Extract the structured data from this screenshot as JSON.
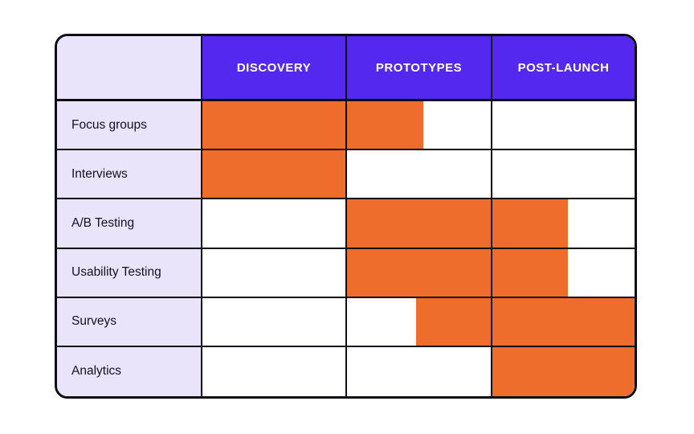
{
  "colors": {
    "header_bg": "#5528F0",
    "header_text": "#FFFFFF",
    "label_bg": "#E9E4F9",
    "bar": "#EE6C2C",
    "grid": "#0E0C15",
    "cell_bg": "#FFFFFF",
    "label_text": "#15101E"
  },
  "table": {
    "corner_label": "",
    "columns": [
      {
        "label": "DISCOVERY"
      },
      {
        "label": "PROTOTYPES"
      },
      {
        "label": "POST-LAUNCH"
      }
    ],
    "rows": [
      {
        "label": "Focus groups",
        "cells": [
          {
            "start": 0,
            "end": 1
          },
          {
            "start": 0,
            "end": 0.53
          },
          {
            "start": 0,
            "end": 0
          }
        ]
      },
      {
        "label": "Interviews",
        "cells": [
          {
            "start": 0,
            "end": 1
          },
          {
            "start": 0,
            "end": 0
          },
          {
            "start": 0,
            "end": 0
          }
        ]
      },
      {
        "label": "A/B Testing",
        "cells": [
          {
            "start": 0,
            "end": 0
          },
          {
            "start": 0,
            "end": 1
          },
          {
            "start": 0,
            "end": 0.53
          }
        ]
      },
      {
        "label": "Usability Testing",
        "cells": [
          {
            "start": 0,
            "end": 0
          },
          {
            "start": 0,
            "end": 1
          },
          {
            "start": 0,
            "end": 0.53
          }
        ]
      },
      {
        "label": "Surveys",
        "cells": [
          {
            "start": 0,
            "end": 0
          },
          {
            "start": 0.48,
            "end": 1
          },
          {
            "start": 0,
            "end": 1
          }
        ]
      },
      {
        "label": "Analytics",
        "cells": [
          {
            "start": 0,
            "end": 0
          },
          {
            "start": 0,
            "end": 0
          },
          {
            "start": 0,
            "end": 1
          }
        ]
      }
    ]
  },
  "chart_data": {
    "type": "table",
    "title": "",
    "columns": [
      "DISCOVERY",
      "PROTOTYPES",
      "POST-LAUNCH"
    ],
    "rows": [
      "Focus groups",
      "Interviews",
      "A/B Testing",
      "Usability Testing",
      "Surveys",
      "Analytics"
    ],
    "axis_units": "phases (0 = start of Discovery, 3 = end of Post-Launch)",
    "bars": [
      {
        "row": "Focus groups",
        "start": 0,
        "end": 1.53
      },
      {
        "row": "Interviews",
        "start": 0,
        "end": 1
      },
      {
        "row": "A/B Testing",
        "start": 1,
        "end": 2.53
      },
      {
        "row": "Usability Testing",
        "start": 1,
        "end": 2.53
      },
      {
        "row": "Surveys",
        "start": 1.48,
        "end": 3
      },
      {
        "row": "Analytics",
        "start": 2,
        "end": 3
      }
    ],
    "bar_color": "#EE6C2C",
    "legend": "none",
    "grid": "on"
  }
}
